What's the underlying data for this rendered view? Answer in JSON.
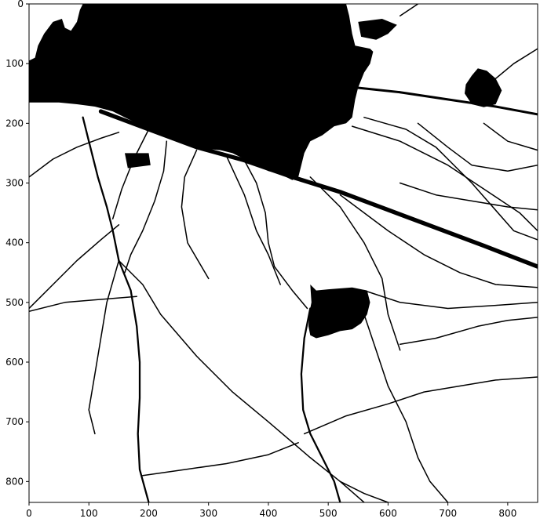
{
  "chart_data": {
    "type": "heatmap",
    "title": "",
    "xlabel": "",
    "ylabel": "",
    "xlim": [
      0,
      850
    ],
    "ylim": [
      0,
      835
    ],
    "y_axis_inverted": true,
    "colormap": "binary",
    "colors": {
      "foreground": "#000000",
      "background": "#ffffff"
    },
    "grid": false,
    "legend": "none",
    "x_ticks": [
      0,
      100,
      200,
      300,
      400,
      500,
      600,
      700,
      800
    ],
    "x_tick_labels": [
      "0",
      "100",
      "200",
      "300",
      "400",
      "500",
      "600",
      "700",
      "800"
    ],
    "y_ticks": [
      0,
      100,
      200,
      300,
      400,
      500,
      600,
      700,
      800
    ],
    "y_tick_labels": [
      "0",
      "100",
      "200",
      "300",
      "400",
      "500",
      "600",
      "700",
      "800"
    ],
    "regions": [
      {
        "name": "upper-left-dark-mass",
        "polygon": [
          [
            0,
            95
          ],
          [
            10,
            90
          ],
          [
            15,
            70
          ],
          [
            25,
            50
          ],
          [
            40,
            30
          ],
          [
            55,
            25
          ],
          [
            60,
            40
          ],
          [
            70,
            45
          ],
          [
            80,
            30
          ],
          [
            85,
            10
          ],
          [
            90,
            0
          ],
          [
            530,
            0
          ],
          [
            535,
            20
          ],
          [
            540,
            50
          ],
          [
            545,
            70
          ],
          [
            570,
            75
          ],
          [
            575,
            80
          ],
          [
            570,
            100
          ],
          [
            560,
            115
          ],
          [
            550,
            140
          ],
          [
            545,
            160
          ],
          [
            540,
            190
          ],
          [
            530,
            200
          ],
          [
            510,
            205
          ],
          [
            490,
            220
          ],
          [
            470,
            230
          ],
          [
            460,
            250
          ],
          [
            455,
            270
          ],
          [
            450,
            290
          ],
          [
            440,
            295
          ],
          [
            420,
            285
          ],
          [
            400,
            280
          ],
          [
            380,
            270
          ],
          [
            360,
            260
          ],
          [
            340,
            250
          ],
          [
            320,
            245
          ],
          [
            300,
            243
          ],
          [
            280,
            240
          ],
          [
            260,
            233
          ],
          [
            240,
            225
          ],
          [
            220,
            218
          ],
          [
            200,
            210
          ],
          [
            180,
            200
          ],
          [
            160,
            190
          ],
          [
            140,
            180
          ],
          [
            110,
            172
          ],
          [
            80,
            168
          ],
          [
            50,
            165
          ],
          [
            20,
            165
          ],
          [
            0,
            165
          ]
        ]
      },
      {
        "name": "small-dark-blob-left",
        "polygon": [
          [
            160,
            250
          ],
          [
            200,
            250
          ],
          [
            203,
            270
          ],
          [
            165,
            275
          ]
        ]
      },
      {
        "name": "small-dark-blob-upper-right",
        "polygon": [
          [
            550,
            30
          ],
          [
            590,
            25
          ],
          [
            615,
            35
          ],
          [
            600,
            50
          ],
          [
            580,
            60
          ],
          [
            555,
            55
          ]
        ]
      },
      {
        "name": "dark-blob-right",
        "polygon": [
          [
            740,
            120
          ],
          [
            750,
            108
          ],
          [
            765,
            112
          ],
          [
            780,
            125
          ],
          [
            790,
            145
          ],
          [
            780,
            168
          ],
          [
            760,
            173
          ],
          [
            740,
            168
          ],
          [
            728,
            150
          ],
          [
            730,
            135
          ]
        ]
      },
      {
        "name": "dark-blob-center",
        "polygon": [
          [
            470,
            470
          ],
          [
            480,
            480
          ],
          [
            500,
            478
          ],
          [
            540,
            475
          ],
          [
            565,
            480
          ],
          [
            570,
            500
          ],
          [
            565,
            520
          ],
          [
            555,
            535
          ],
          [
            540,
            545
          ],
          [
            520,
            548
          ],
          [
            500,
            555
          ],
          [
            480,
            560
          ],
          [
            470,
            555
          ],
          [
            467,
            540
          ],
          [
            468,
            520
          ],
          [
            472,
            500
          ]
        ]
      }
    ],
    "cracks": [
      {
        "name": "crack-diagonal-main",
        "width": 7,
        "points": [
          [
            120,
            180
          ],
          [
            200,
            210
          ],
          [
            280,
            240
          ],
          [
            360,
            262
          ],
          [
            440,
            290
          ],
          [
            520,
            315
          ],
          [
            600,
            345
          ],
          [
            680,
            375
          ],
          [
            760,
            405
          ],
          [
            850,
            440
          ]
        ]
      },
      {
        "name": "crack-right-upper",
        "width": 4,
        "points": [
          [
            545,
            140
          ],
          [
            620,
            148
          ],
          [
            700,
            160
          ],
          [
            780,
            172
          ],
          [
            850,
            185
          ]
        ]
      },
      {
        "name": "crack-right-top",
        "width": 2,
        "points": [
          [
            780,
            125
          ],
          [
            810,
            100
          ],
          [
            850,
            75
          ]
        ]
      },
      {
        "name": "crack-fan-1",
        "width": 2,
        "points": [
          [
            540,
            205
          ],
          [
            620,
            230
          ],
          [
            700,
            270
          ],
          [
            760,
            310
          ],
          [
            820,
            350
          ],
          [
            850,
            380
          ]
        ]
      },
      {
        "name": "crack-fan-2",
        "width": 2,
        "points": [
          [
            560,
            190
          ],
          [
            630,
            210
          ],
          [
            680,
            240
          ],
          [
            740,
            300
          ],
          [
            810,
            380
          ],
          [
            850,
            395
          ]
        ]
      },
      {
        "name": "crack-fan-3",
        "width": 2,
        "points": [
          [
            650,
            200
          ],
          [
            700,
            240
          ],
          [
            740,
            270
          ],
          [
            800,
            280
          ],
          [
            850,
            270
          ]
        ]
      },
      {
        "name": "crack-fan-4",
        "width": 2,
        "points": [
          [
            760,
            200
          ],
          [
            800,
            230
          ],
          [
            850,
            245
          ]
        ]
      },
      {
        "name": "crack-left-edge",
        "width": 2,
        "points": [
          [
            0,
            290
          ],
          [
            40,
            260
          ],
          [
            80,
            240
          ],
          [
            120,
            225
          ],
          [
            150,
            215
          ]
        ]
      },
      {
        "name": "crack-left-vertical",
        "width": 3,
        "points": [
          [
            90,
            190
          ],
          [
            100,
            230
          ],
          [
            115,
            290
          ],
          [
            130,
            340
          ],
          [
            140,
            380
          ],
          [
            150,
            430
          ]
        ]
      },
      {
        "name": "crack-left-radial",
        "width": 2,
        "points": [
          [
            200,
            210
          ],
          [
            175,
            260
          ],
          [
            155,
            310
          ],
          [
            140,
            360
          ]
        ]
      },
      {
        "name": "crack-left-descent",
        "width": 2,
        "points": [
          [
            0,
            510
          ],
          [
            40,
            470
          ],
          [
            80,
            430
          ],
          [
            120,
            395
          ],
          [
            150,
            370
          ]
        ]
      },
      {
        "name": "crack-lower-left-vertical",
        "width": 2,
        "points": [
          [
            150,
            430
          ],
          [
            130,
            500
          ],
          [
            120,
            560
          ],
          [
            110,
            620
          ],
          [
            100,
            680
          ],
          [
            110,
            720
          ]
        ]
      },
      {
        "name": "crack-center-vertical",
        "width": 3,
        "points": [
          [
            150,
            430
          ],
          [
            170,
            480
          ],
          [
            180,
            540
          ],
          [
            185,
            600
          ],
          [
            185,
            660
          ],
          [
            182,
            720
          ],
          [
            185,
            780
          ],
          [
            200,
            835
          ]
        ]
      },
      {
        "name": "crack-descending-right",
        "width": 2,
        "points": [
          [
            150,
            430
          ],
          [
            190,
            470
          ],
          [
            220,
            520
          ],
          [
            280,
            590
          ],
          [
            340,
            650
          ],
          [
            400,
            700
          ],
          [
            470,
            760
          ],
          [
            520,
            800
          ],
          [
            560,
            835
          ]
        ]
      },
      {
        "name": "crack-left-horizontal",
        "width": 2,
        "points": [
          [
            0,
            515
          ],
          [
            60,
            500
          ],
          [
            120,
            495
          ],
          [
            180,
            490
          ]
        ]
      },
      {
        "name": "crack-radial-2",
        "width": 2,
        "points": [
          [
            230,
            230
          ],
          [
            225,
            280
          ],
          [
            210,
            330
          ],
          [
            190,
            380
          ],
          [
            170,
            420
          ],
          [
            160,
            450
          ]
        ]
      },
      {
        "name": "crack-radial-3",
        "width": 2,
        "points": [
          [
            280,
            245
          ],
          [
            260,
            290
          ],
          [
            255,
            340
          ],
          [
            265,
            400
          ],
          [
            300,
            460
          ]
        ]
      },
      {
        "name": "crack-radial-4",
        "width": 2,
        "points": [
          [
            360,
            262
          ],
          [
            380,
            300
          ],
          [
            395,
            350
          ],
          [
            400,
            400
          ],
          [
            410,
            440
          ],
          [
            440,
            480
          ],
          [
            465,
            510
          ]
        ]
      },
      {
        "name": "crack-radial-5",
        "width": 2,
        "points": [
          [
            330,
            255
          ],
          [
            360,
            320
          ],
          [
            380,
            380
          ],
          [
            400,
            420
          ],
          [
            420,
            470
          ]
        ]
      },
      {
        "name": "crack-center-down",
        "width": 3,
        "points": [
          [
            470,
            510
          ],
          [
            460,
            560
          ],
          [
            455,
            620
          ],
          [
            458,
            680
          ],
          [
            470,
            720
          ],
          [
            490,
            760
          ],
          [
            510,
            800
          ],
          [
            520,
            835
          ]
        ]
      },
      {
        "name": "crack-center-down-right",
        "width": 2,
        "points": [
          [
            560,
            520
          ],
          [
            580,
            580
          ],
          [
            600,
            640
          ],
          [
            630,
            700
          ],
          [
            650,
            760
          ],
          [
            670,
            800
          ],
          [
            700,
            835
          ]
        ]
      },
      {
        "name": "crack-right-mid-1",
        "width": 2,
        "points": [
          [
            470,
            290
          ],
          [
            520,
            340
          ],
          [
            560,
            400
          ],
          [
            590,
            460
          ],
          [
            600,
            520
          ],
          [
            620,
            580
          ]
        ]
      },
      {
        "name": "crack-right-mid-2",
        "width": 2,
        "points": [
          [
            520,
            320
          ],
          [
            600,
            380
          ],
          [
            660,
            420
          ],
          [
            720,
            450
          ],
          [
            780,
            470
          ],
          [
            850,
            475
          ]
        ]
      },
      {
        "name": "crack-right-mid-3",
        "width": 2,
        "points": [
          [
            560,
            480
          ],
          [
            620,
            500
          ],
          [
            700,
            510
          ],
          [
            780,
            505
          ],
          [
            850,
            500
          ]
        ]
      },
      {
        "name": "crack-right-lower",
        "width": 2,
        "points": [
          [
            620,
            570
          ],
          [
            680,
            560
          ],
          [
            750,
            540
          ],
          [
            800,
            530
          ],
          [
            850,
            525
          ]
        ]
      },
      {
        "name": "crack-lower-horizontal",
        "width": 2,
        "points": [
          [
            460,
            720
          ],
          [
            530,
            690
          ],
          [
            600,
            670
          ],
          [
            660,
            650
          ],
          [
            720,
            640
          ],
          [
            780,
            630
          ],
          [
            850,
            625
          ]
        ]
      },
      {
        "name": "crack-lower-radial",
        "width": 2,
        "points": [
          [
            190,
            790
          ],
          [
            260,
            780
          ],
          [
            330,
            770
          ],
          [
            400,
            755
          ],
          [
            450,
            735
          ]
        ]
      },
      {
        "name": "crack-bottom-small",
        "width": 2,
        "points": [
          [
            520,
            800
          ],
          [
            560,
            820
          ],
          [
            600,
            835
          ]
        ]
      },
      {
        "name": "crack-center-right",
        "width": 2,
        "points": [
          [
            620,
            300
          ],
          [
            680,
            320
          ],
          [
            740,
            330
          ],
          [
            800,
            340
          ],
          [
            850,
            345
          ]
        ]
      },
      {
        "name": "crack-upper-thin",
        "width": 2,
        "points": [
          [
            460,
            90
          ],
          [
            500,
            75
          ],
          [
            540,
            60
          ]
        ]
      },
      {
        "name": "crack-upper-right-thin",
        "width": 2,
        "points": [
          [
            620,
            20
          ],
          [
            650,
            0
          ]
        ]
      },
      {
        "name": "crack-left-upper-thin",
        "width": 2,
        "points": [
          [
            20,
            120
          ],
          [
            40,
            100
          ],
          [
            60,
            80
          ]
        ]
      }
    ]
  }
}
